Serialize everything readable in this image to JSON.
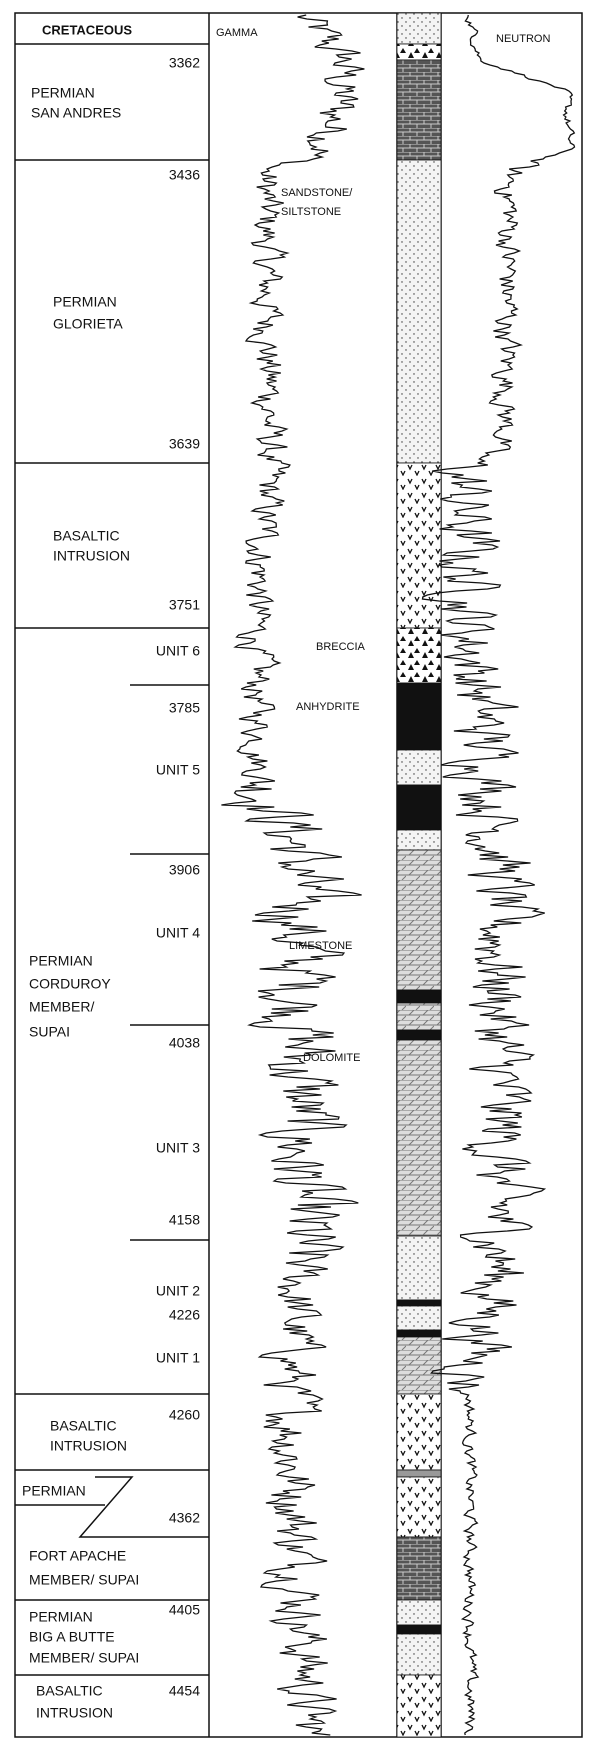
{
  "log": {
    "headers": {
      "gamma": "GAMMA",
      "neutron": "NEUTRON"
    },
    "formations": {
      "cretaceous": "CRETACEOUS",
      "san_andres": [
        "PERMIAN",
        "SAN ANDRES"
      ],
      "glorieta": [
        "PERMIAN",
        "GLORIETA"
      ],
      "basaltic_1": [
        "BASALTIC",
        "INTRUSION"
      ],
      "corduroy": [
        "PERMIAN",
        "CORDUROY",
        "MEMBER/",
        "SUPAI"
      ],
      "basaltic_2": [
        "BASALTIC",
        "INTRUSION"
      ],
      "permian_fault": "PERMIAN",
      "fort_apache": [
        "FORT APACHE",
        "MEMBER/ SUPAI"
      ],
      "big_a_butte": [
        "PERMIAN",
        "BIG A BUTTE",
        "MEMBER/  SUPAI"
      ],
      "basaltic_3": [
        "BASALTIC",
        "INTRUSION"
      ]
    },
    "units": [
      "UNIT 6",
      "UNIT 5",
      "UNIT 4",
      "UNIT 3",
      "UNIT 2",
      "UNIT 1"
    ],
    "depths": [
      3362,
      3436,
      3639,
      3751,
      3785,
      3906,
      4038,
      4158,
      4226,
      4260,
      4362,
      4405,
      4454
    ],
    "lithology": [
      "SANDSTONE/",
      "SILTSTONE",
      "BRECCIA",
      "ANHYDRITE",
      "LIMESTONE",
      "DOLOMITE"
    ]
  }
}
